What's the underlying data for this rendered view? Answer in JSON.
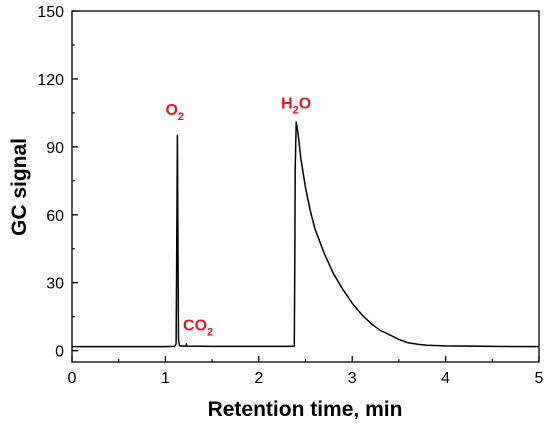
{
  "chart_data": {
    "type": "line",
    "title": "",
    "xlabel": "Retention time, min",
    "ylabel": "GC signal",
    "xlim": [
      0,
      5
    ],
    "ylim": [
      -5,
      150
    ],
    "x_ticks": [
      "0",
      "1",
      "2",
      "3",
      "4",
      "5"
    ],
    "y_ticks": [
      "0",
      "30",
      "60",
      "90",
      "120",
      "150"
    ],
    "x_tick_values": [
      0,
      1,
      2,
      3,
      4,
      5
    ],
    "y_tick_values": [
      0,
      30,
      60,
      90,
      120,
      150
    ],
    "grid": false,
    "line_color": "#000000",
    "annotation_color": "#e8141c",
    "series": [
      {
        "values": [
          [
            0,
            1.8
          ],
          [
            1.0,
            1.8
          ],
          [
            1.1,
            1.9
          ],
          [
            1.115,
            3
          ],
          [
            1.122,
            50
          ],
          [
            1.128,
            95
          ],
          [
            1.134,
            50
          ],
          [
            1.14,
            5
          ],
          [
            1.15,
            2.2
          ],
          [
            1.2,
            2.0
          ],
          [
            1.22,
            2.0
          ],
          [
            1.225,
            3.0
          ],
          [
            1.23,
            2.0
          ],
          [
            1.5,
            1.9
          ],
          [
            2.0,
            1.9
          ],
          [
            2.3,
            1.9
          ],
          [
            2.38,
            2.0
          ],
          [
            2.385,
            40
          ],
          [
            2.39,
            80
          ],
          [
            2.4,
            101
          ],
          [
            2.42,
            96
          ],
          [
            2.45,
            85
          ],
          [
            2.5,
            72
          ],
          [
            2.55,
            62
          ],
          [
            2.6,
            54
          ],
          [
            2.7,
            43
          ],
          [
            2.8,
            34
          ],
          [
            2.9,
            27
          ],
          [
            3.0,
            21
          ],
          [
            3.1,
            16
          ],
          [
            3.2,
            12
          ],
          [
            3.3,
            9
          ],
          [
            3.4,
            7
          ],
          [
            3.5,
            5
          ],
          [
            3.6,
            3.5
          ],
          [
            3.7,
            2.8
          ],
          [
            3.8,
            2.4
          ],
          [
            4.0,
            2.1
          ],
          [
            4.5,
            1.9
          ],
          [
            5.0,
            1.8
          ]
        ]
      }
    ]
  },
  "annotations": [
    {
      "id": "o2",
      "text": "O",
      "sub": "2",
      "x": 1.1,
      "y": 104
    },
    {
      "id": "co2",
      "text": "CO",
      "sub": "2",
      "x": 1.35,
      "y": 9
    },
    {
      "id": "h2o-pre",
      "text": "H",
      "sub": "2",
      "post": "O",
      "x": 2.4,
      "y": 107
    }
  ]
}
